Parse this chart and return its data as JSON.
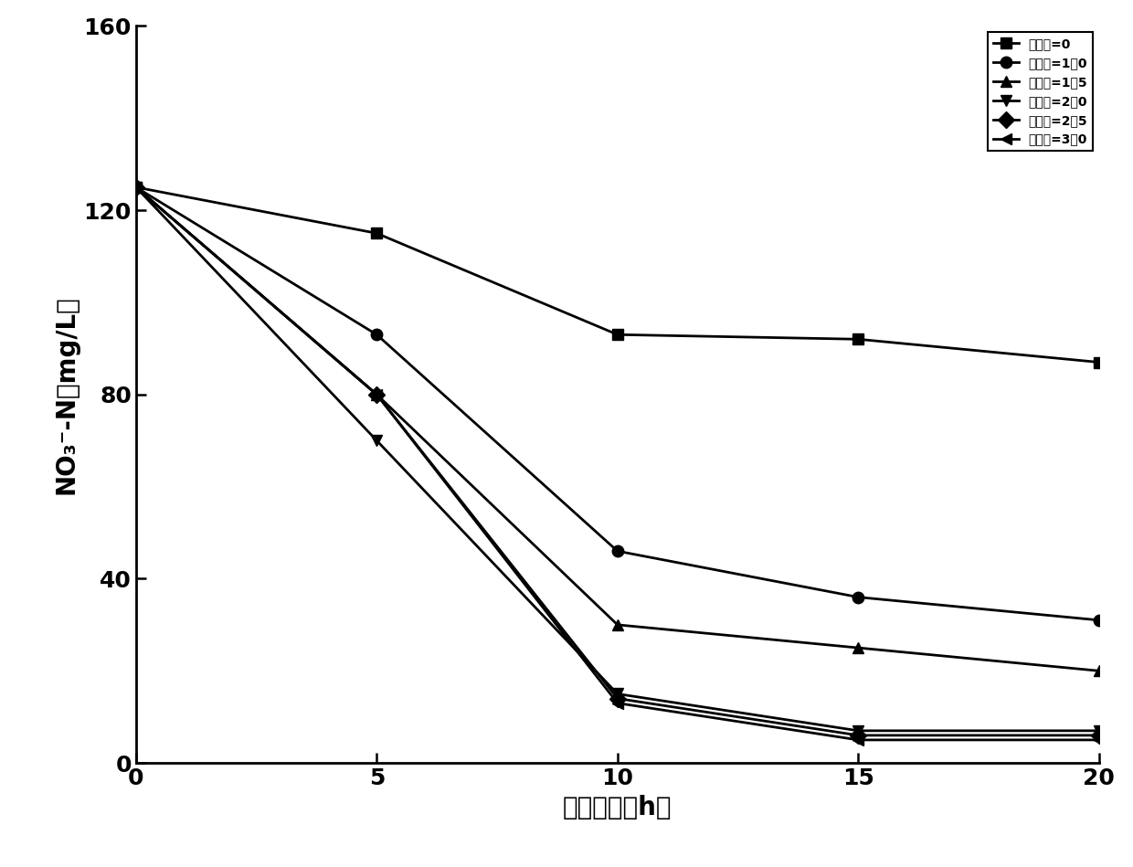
{
  "x": [
    0,
    5,
    10,
    15,
    20
  ],
  "series": [
    {
      "label": "碳氮比=0",
      "marker": "s",
      "values": [
        125,
        115,
        93,
        92,
        87
      ]
    },
    {
      "label": "碳氮比=1．0",
      "marker": "o",
      "values": [
        125,
        93,
        46,
        36,
        31
      ]
    },
    {
      "label": "碳氮比=1．5",
      "marker": "^",
      "values": [
        125,
        80,
        30,
        25,
        20
      ]
    },
    {
      "label": "碳氮比=2．0",
      "marker": "v",
      "values": [
        125,
        70,
        15,
        7,
        7
      ]
    },
    {
      "label": "碳氮比=2．5",
      "marker": "D",
      "values": [
        125,
        80,
        14,
        6,
        6
      ]
    },
    {
      "label": "碳氮比=3．0",
      "marker": "<",
      "values": [
        125,
        80,
        13,
        5,
        5
      ]
    }
  ],
  "xlabel": "处理时间（h）",
  "ylim": [
    0,
    160
  ],
  "xlim": [
    0,
    20
  ],
  "yticks": [
    0,
    40,
    80,
    120,
    160
  ],
  "xticks": [
    0,
    5,
    10,
    15,
    20
  ],
  "color": "#000000",
  "linewidth": 2.0,
  "markersize": 9,
  "legend_fontsize": 16,
  "axis_fontsize": 20,
  "tick_fontsize": 18
}
